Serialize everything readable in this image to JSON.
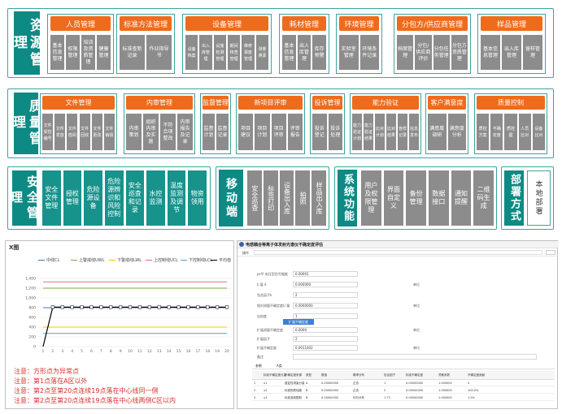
{
  "resource": {
    "label": "资源管理",
    "groups": [
      {
        "title": "人员管理",
        "items": [
          "基本信息管理",
          "权限管理",
          "培训及资质管理",
          "健康管理"
        ]
      },
      {
        "title": "标准方法管理",
        "items": [
          "标准查新记录",
          "作业指导书"
        ]
      },
      {
        "title": "设备管理",
        "items": [
          "设备档案",
          "出入库管理",
          "设施检测管理",
          "期间核查管理",
          "维修报废管理",
          "测量溯源"
        ]
      },
      {
        "title": "耗材管理",
        "items": [
          "基本信息管理",
          "出入库管理",
          "库存预警"
        ]
      },
      {
        "title": "环境管理",
        "items": [
          "实验室管理",
          "环境条件记录"
        ]
      },
      {
        "title": "分包方/供应商管理",
        "items": [
          "档案管理",
          "分包/供应商评价",
          "分包任务管理",
          "分包方资质管理"
        ]
      },
      {
        "title": "样品管理",
        "items": [
          "基本信息管理",
          "出入库管理",
          "留样管理"
        ]
      }
    ]
  },
  "quality": {
    "label": "质量管理",
    "groups": [
      {
        "title": "文件管理",
        "items": [
          "文件受控编号",
          "文件发放",
          "文件借阅",
          "文件回收",
          "文件更改",
          "文件销毁"
        ]
      },
      {
        "title": "内审管理",
        "items": [
          "内审策划",
          "组织内审及实施",
          "不符合项整改",
          "内审报告及记录"
        ]
      },
      {
        "title": "监督管理",
        "items": [
          "监督计划",
          "监督记录"
        ]
      },
      {
        "title": "新项目评审",
        "items": [
          "项目建议",
          "项目计划",
          "项目评审",
          "评审报告"
        ]
      },
      {
        "title": "投诉管理",
        "items": [
          "投诉登记",
          "投诉处理"
        ]
      },
      {
        "title": "能力验证",
        "items": [
          "能力验证计划",
          "能力验证结果",
          "比对计划",
          "比对结果",
          "盲样记录",
          "信息发布"
        ]
      },
      {
        "title": "客户满意度",
        "items": [
          "满意度调研",
          "满意度分析"
        ]
      },
      {
        "title": "质量控制",
        "items": [
          "质控方案",
          "不确定度",
          "质控图",
          "人员比对",
          "设备比对"
        ]
      }
    ]
  },
  "safety": {
    "label": "安全管理",
    "items": [
      "安全文件管理",
      "授权管理",
      "危险源设备",
      "危险源辨识和风险控制",
      "安全巡查和记录",
      "水控监测",
      "温度监测及调节",
      "物资领用"
    ]
  },
  "mobile": {
    "label": "移动端",
    "items": [
      "安全巡查",
      "标签打印",
      "设备出入库",
      "拍照",
      "样品出入库"
    ]
  },
  "system": {
    "label": "系统功能",
    "items": [
      "用户及权限管理",
      "界面自定义",
      "备份管理",
      "数据接口",
      "通知提醒",
      "二维码生成"
    ]
  },
  "deploy": {
    "label": "部署方式",
    "item": "本地部署"
  },
  "chart_data": {
    "type": "line",
    "title": "X图",
    "legend": [
      "中线CL",
      "上警戒线UWL",
      "下警戒线LWL",
      "上控制线UCL",
      "下控制线LCL",
      "平均值"
    ],
    "colors": {
      "CL": "#4472c4",
      "UWL": "#70ad47",
      "LWL": "#ffc000",
      "UCL": "#e2726b",
      "LCL": "#5b9bd5",
      "AVG": "#000000"
    },
    "x": [
      1,
      2,
      3,
      4,
      5,
      6,
      7,
      8,
      9,
      10,
      11,
      12,
      13,
      14,
      15,
      16,
      17,
      18,
      19,
      20
    ],
    "ylim": [
      0,
      1400
    ],
    "yticks": [
      "1,400",
      "1,200",
      "1,000",
      "800",
      "600",
      "400",
      "200",
      "0"
    ],
    "series": [
      {
        "name": "中线CL",
        "values": [
          800,
          800,
          800,
          800,
          800,
          800,
          800,
          800,
          800,
          800,
          800,
          800,
          800,
          800,
          800,
          800,
          800,
          800,
          800,
          800
        ]
      },
      {
        "name": "上警戒线UWL",
        "values": [
          1200,
          1200,
          1200,
          1200,
          1200,
          1200,
          1200,
          1200,
          1200,
          1200,
          1200,
          1200,
          1200,
          1200,
          1200,
          1200,
          1200,
          1200,
          1200,
          1200
        ]
      },
      {
        "name": "下警戒线LWL",
        "values": [
          400,
          400,
          400,
          400,
          400,
          400,
          400,
          400,
          400,
          400,
          400,
          400,
          400,
          400,
          400,
          400,
          400,
          400,
          400,
          400
        ]
      },
      {
        "name": "上控制线UCL",
        "values": [
          1330,
          1330,
          1330,
          1330,
          1330,
          1330,
          1330,
          1330,
          1330,
          1330,
          1330,
          1330,
          1330,
          1330,
          1330,
          1330,
          1330,
          1330,
          1330,
          1330
        ]
      },
      {
        "name": "下控制线LCL",
        "values": [
          270,
          270,
          270,
          270,
          270,
          270,
          270,
          270,
          270,
          270,
          270,
          270,
          270,
          270,
          270,
          270,
          270,
          270,
          270,
          270
        ]
      },
      {
        "name": "平均值",
        "values": [
          0,
          810,
          810,
          810,
          810,
          810,
          810,
          810,
          810,
          810,
          810,
          810,
          810,
          810,
          810,
          810,
          810,
          810,
          810,
          810
        ]
      }
    ]
  },
  "notes": [
    "注意：方形点为异常点",
    "注意：第1点落在A区以外",
    "注意：第2点至第20点连续19点落在中心线同一侧",
    "注意：第2点至第20点连续19点落在中心线两侧C区以内"
  ],
  "form": {
    "title": "电感耦合等离子体发射光谱仪不确定度评估",
    "menu": "操作",
    "fields": [
      {
        "label": "ps平 电压型信号幅度",
        "value": "0.00001"
      },
      {
        "label": "k 值 4",
        "value": "0.000000",
        "note": "单位"
      },
      {
        "label": "包含因子k",
        "value": "2"
      },
      {
        "label": "相对测量不确定度U 量",
        "value": "0.0000000",
        "note": "单位"
      },
      {
        "label": "自由度",
        "value": "1"
      }
    ],
    "action": "扩展不确定度",
    "fields2": [
      {
        "label": "扩展测量不确定度",
        "value": "0.0000",
        "note": "单位"
      },
      {
        "label": "扩展因子",
        "value": "2"
      },
      {
        "label": "扩展不确定度",
        "value": "0.0011402",
        "note": "单位"
      },
      {
        "label": "备注",
        "value": ""
      }
    ],
    "tabs": [
      "参数",
      "A类"
    ],
    "table_headers": [
      "",
      "标准不确定度分量",
      "不确定度来源",
      "类型",
      "数值",
      "概率分布",
      "包含因子",
      "标准不确定度",
      "灵敏系数",
      "不确定度贡献"
    ],
    "table_rows": [
      [
        "1",
        "u1",
        "重复性测量分量",
        "A",
        "0.00000000",
        "正态",
        "1",
        "0.00000000",
        "1.000000",
        "0"
      ],
      [
        "2",
        "u2",
        "标准物质纯度",
        "B",
        "0.00000000",
        "正态",
        "2",
        "0.00000000",
        "1.000000",
        "100.0%"
      ],
      [
        "3",
        "u3",
        "标准溶液配制",
        "B",
        "0.00000000",
        "均匀分布",
        "1.73",
        "0.00000000",
        "1.000000",
        "1.5%"
      ]
    ]
  }
}
